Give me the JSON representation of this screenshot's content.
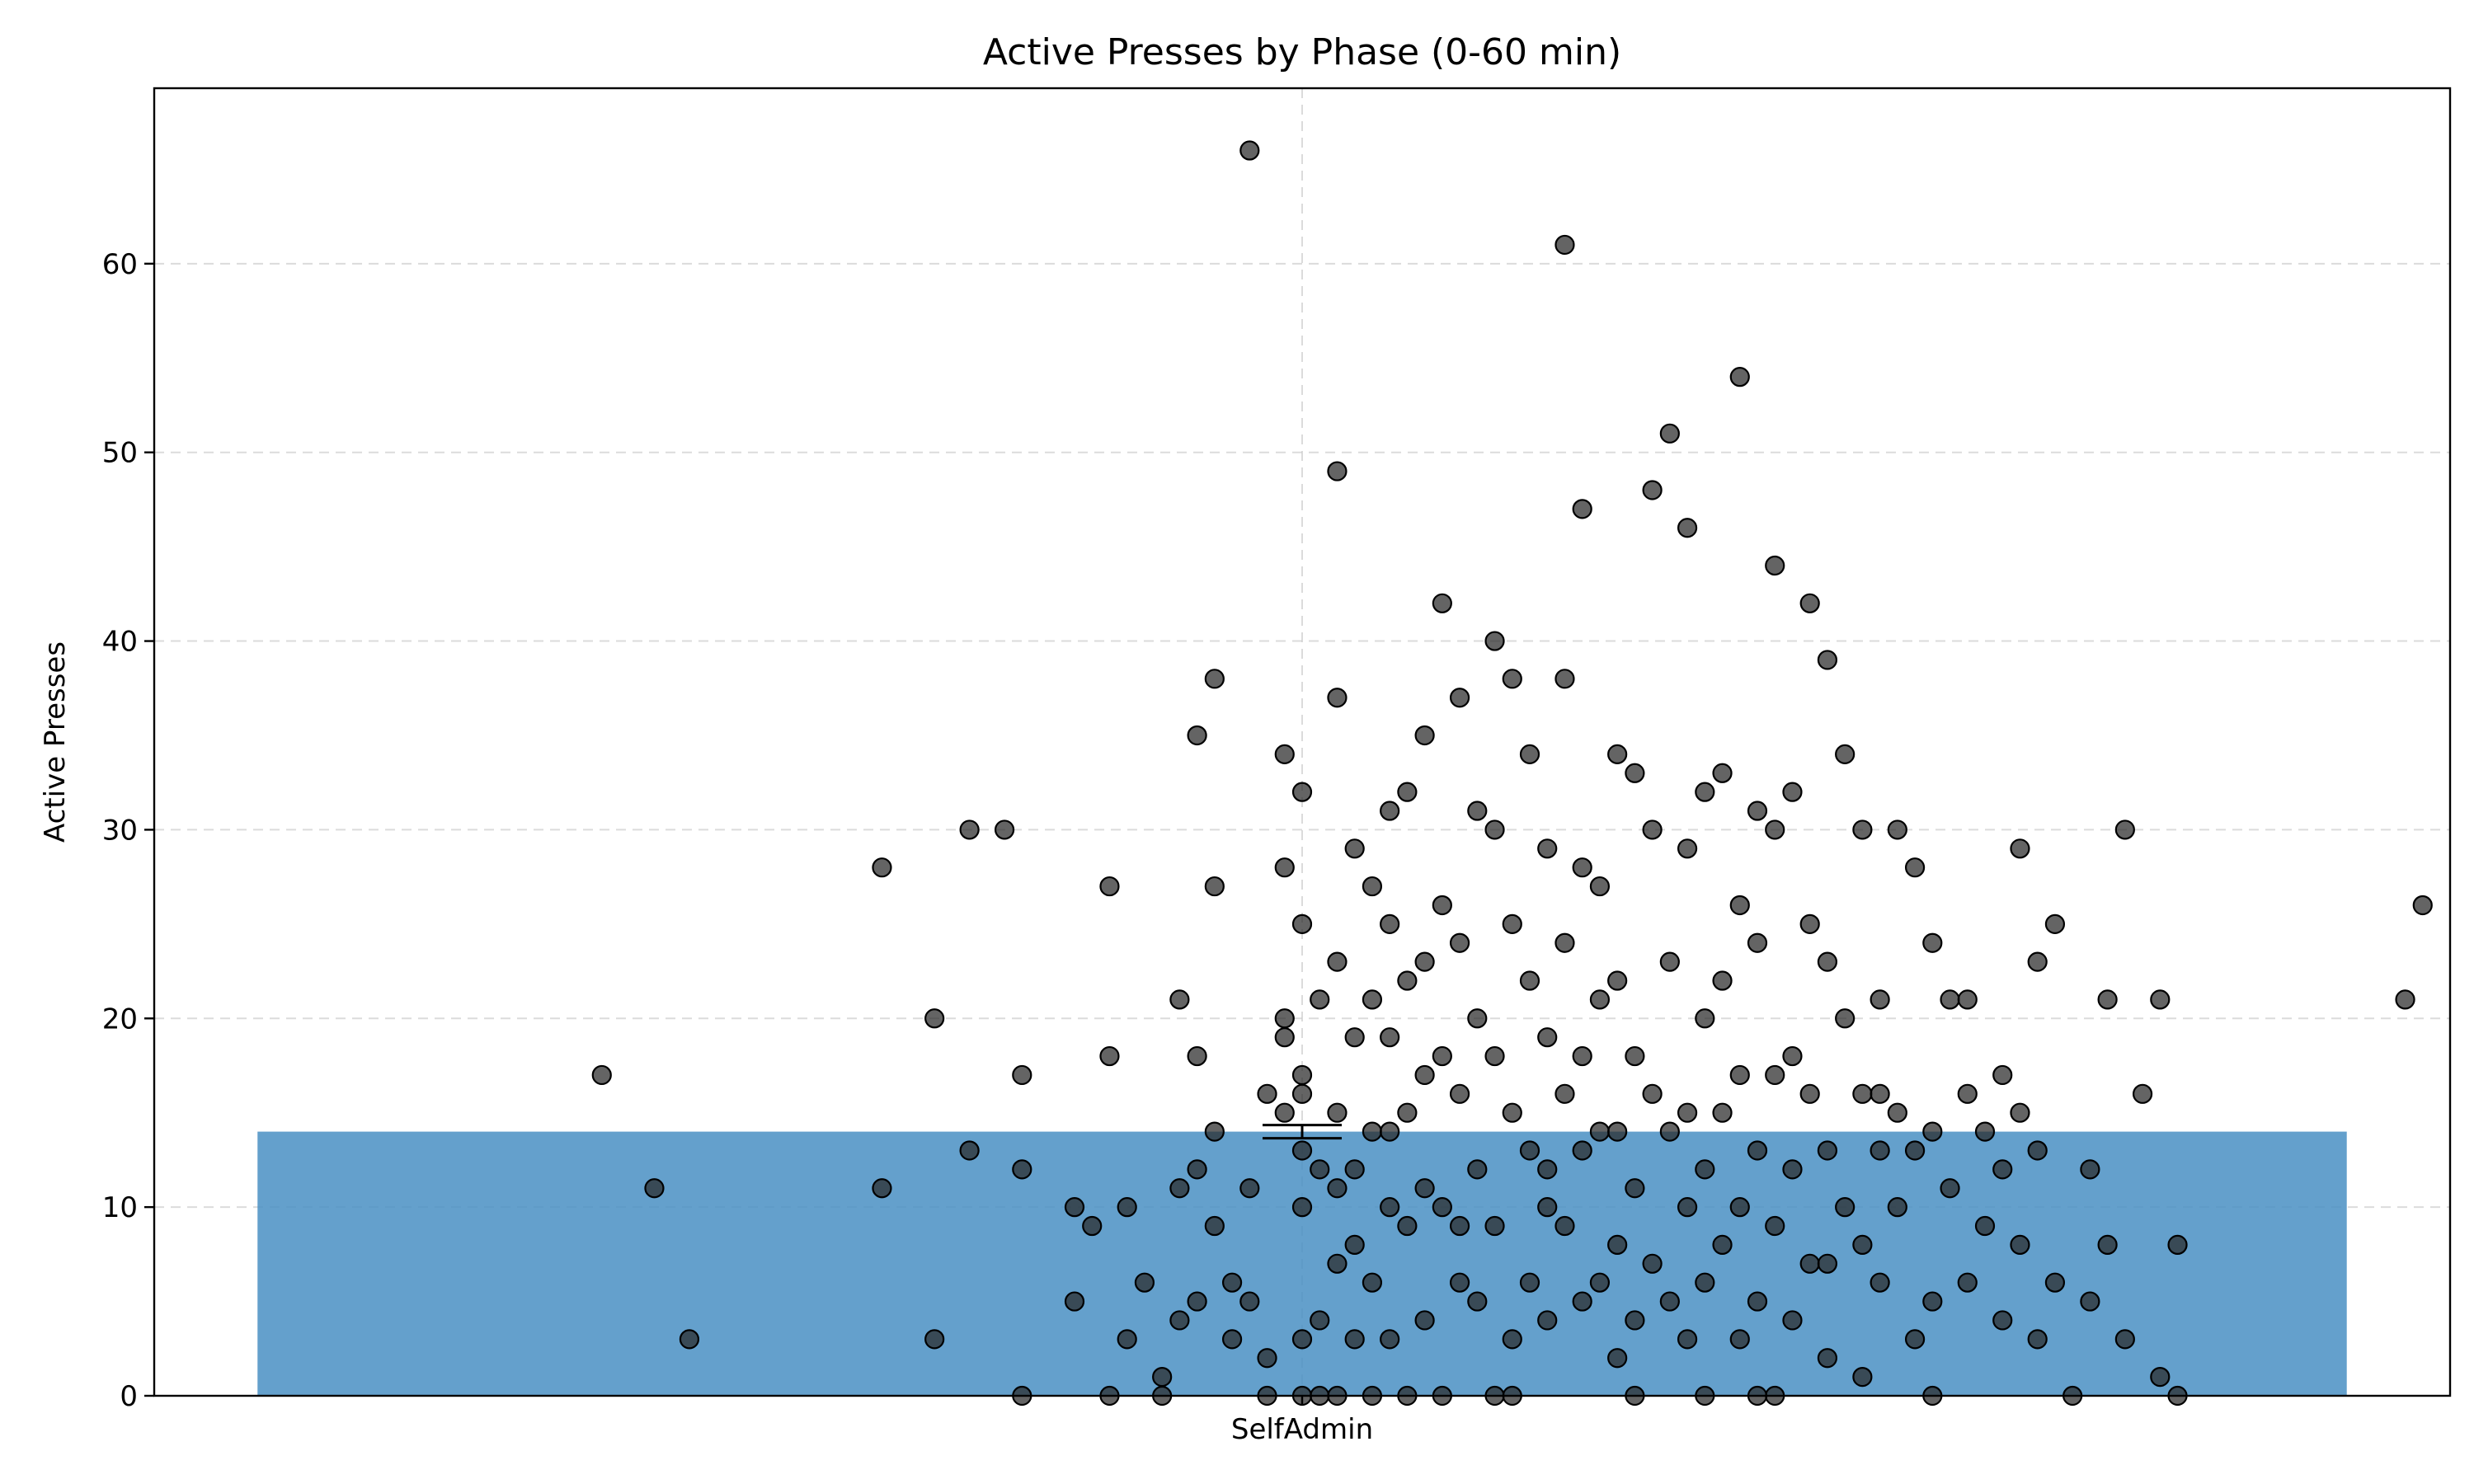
{
  "chart_data": {
    "type": "bar",
    "title": "Active Presses by Phase (0-60 min)",
    "xlabel": "",
    "ylabel": "Active Presses",
    "categories": [
      "SelfAdmin"
    ],
    "values": [
      14
    ],
    "error": [
      0.35
    ],
    "ylim": [
      0,
      69.3
    ],
    "yticks": [
      0,
      10,
      20,
      30,
      40,
      50,
      60
    ],
    "grid": true,
    "bar_color": "#4a90c4",
    "point_color": "#3c3c3c",
    "points": [
      [
        -0.4,
        17
      ],
      [
        -0.37,
        11
      ],
      [
        -0.35,
        3
      ],
      [
        -0.24,
        28
      ],
      [
        -0.24,
        11
      ],
      [
        -0.21,
        20
      ],
      [
        -0.21,
        3
      ],
      [
        -0.19,
        30
      ],
      [
        -0.19,
        13
      ],
      [
        -0.17,
        30
      ],
      [
        -0.16,
        12
      ],
      [
        -0.16,
        17
      ],
      [
        -0.16,
        0
      ],
      [
        -0.13,
        10
      ],
      [
        -0.13,
        5
      ],
      [
        -0.12,
        9
      ],
      [
        -0.11,
        27
      ],
      [
        -0.11,
        18
      ],
      [
        -0.11,
        0
      ],
      [
        -0.1,
        10
      ],
      [
        -0.1,
        3
      ],
      [
        -0.09,
        6
      ],
      [
        -0.08,
        1
      ],
      [
        -0.08,
        0
      ],
      [
        -0.07,
        21
      ],
      [
        -0.07,
        11
      ],
      [
        -0.07,
        4
      ],
      [
        -0.06,
        35
      ],
      [
        -0.06,
        18
      ],
      [
        -0.06,
        12
      ],
      [
        -0.06,
        5
      ],
      [
        -0.05,
        38
      ],
      [
        -0.05,
        27
      ],
      [
        -0.05,
        14
      ],
      [
        -0.05,
        9
      ],
      [
        -0.04,
        6
      ],
      [
        -0.04,
        3
      ],
      [
        -0.03,
        66
      ],
      [
        -0.03,
        11
      ],
      [
        -0.03,
        5
      ],
      [
        -0.02,
        16
      ],
      [
        -0.02,
        2
      ],
      [
        -0.01,
        34
      ],
      [
        -0.01,
        28
      ],
      [
        -0.01,
        20
      ],
      [
        -0.01,
        19
      ],
      [
        -0.01,
        15
      ],
      [
        0,
        32
      ],
      [
        0,
        25
      ],
      [
        0,
        16
      ],
      [
        0,
        13
      ],
      [
        0,
        10
      ],
      [
        0,
        3
      ],
      [
        0,
        0
      ],
      [
        0.01,
        21
      ],
      [
        0.01,
        12
      ],
      [
        0.01,
        4
      ],
      [
        0.01,
        0
      ],
      [
        0.02,
        49
      ],
      [
        0.02,
        37
      ],
      [
        0.02,
        15
      ],
      [
        0.02,
        11
      ],
      [
        0.02,
        7
      ],
      [
        0.02,
        0
      ],
      [
        0.03,
        29
      ],
      [
        0.03,
        19
      ],
      [
        0.03,
        12
      ],
      [
        0.03,
        8
      ],
      [
        0.03,
        3
      ],
      [
        0.04,
        27
      ],
      [
        0.04,
        21
      ],
      [
        0.04,
        14
      ],
      [
        0.04,
        6
      ],
      [
        0.04,
        0
      ],
      [
        0.05,
        31
      ],
      [
        0.05,
        25
      ],
      [
        0.05,
        19
      ],
      [
        0.05,
        10
      ],
      [
        0.05,
        3
      ],
      [
        0.06,
        32
      ],
      [
        0.06,
        22
      ],
      [
        0.06,
        15
      ],
      [
        0.06,
        9
      ],
      [
        0.06,
        0
      ],
      [
        0.07,
        35
      ],
      [
        0.07,
        23
      ],
      [
        0.07,
        17
      ],
      [
        0.07,
        11
      ],
      [
        0.07,
        4
      ],
      [
        0.08,
        42
      ],
      [
        0.08,
        26
      ],
      [
        0.08,
        18
      ],
      [
        0.08,
        10
      ],
      [
        0.08,
        0
      ],
      [
        0.09,
        37
      ],
      [
        0.09,
        24
      ],
      [
        0.09,
        16
      ],
      [
        0.09,
        6
      ],
      [
        0.1,
        31
      ],
      [
        0.1,
        20
      ],
      [
        0.1,
        12
      ],
      [
        0.1,
        5
      ],
      [
        0.11,
        40
      ],
      [
        0.11,
        30
      ],
      [
        0.11,
        18
      ],
      [
        0.11,
        9
      ],
      [
        0.11,
        0
      ],
      [
        0.12,
        38
      ],
      [
        0.12,
        25
      ],
      [
        0.12,
        15
      ],
      [
        0.12,
        3
      ],
      [
        0.13,
        34
      ],
      [
        0.13,
        22
      ],
      [
        0.13,
        13
      ],
      [
        0.13,
        6
      ],
      [
        0.14,
        29
      ],
      [
        0.14,
        19
      ],
      [
        0.14,
        10
      ],
      [
        0.14,
        4
      ],
      [
        0.15,
        61
      ],
      [
        0.15,
        38
      ],
      [
        0.15,
        24
      ],
      [
        0.15,
        16
      ],
      [
        0.15,
        9
      ],
      [
        0.16,
        47
      ],
      [
        0.16,
        28
      ],
      [
        0.16,
        18
      ],
      [
        0.16,
        13
      ],
      [
        0.16,
        5
      ],
      [
        0.17,
        27
      ],
      [
        0.17,
        14
      ],
      [
        0.17,
        6
      ],
      [
        0.18,
        34
      ],
      [
        0.18,
        22
      ],
      [
        0.18,
        14
      ],
      [
        0.18,
        8
      ],
      [
        0.18,
        2
      ],
      [
        0.19,
        33
      ],
      [
        0.19,
        18
      ],
      [
        0.19,
        11
      ],
      [
        0.19,
        4
      ],
      [
        0.2,
        48
      ],
      [
        0.2,
        30
      ],
      [
        0.2,
        16
      ],
      [
        0.2,
        7
      ],
      [
        0.21,
        51
      ],
      [
        0.21,
        23
      ],
      [
        0.21,
        14
      ],
      [
        0.21,
        5
      ],
      [
        0.22,
        46
      ],
      [
        0.22,
        29
      ],
      [
        0.22,
        15
      ],
      [
        0.22,
        10
      ],
      [
        0.22,
        3
      ],
      [
        0.23,
        32
      ],
      [
        0.23,
        20
      ],
      [
        0.23,
        12
      ],
      [
        0.23,
        6
      ],
      [
        0.24,
        33
      ],
      [
        0.24,
        22
      ],
      [
        0.24,
        8
      ],
      [
        0.25,
        54
      ],
      [
        0.25,
        26
      ],
      [
        0.25,
        17
      ],
      [
        0.25,
        10
      ],
      [
        0.25,
        3
      ],
      [
        0.26,
        31
      ],
      [
        0.26,
        24
      ],
      [
        0.26,
        13
      ],
      [
        0.26,
        5
      ],
      [
        0.27,
        44
      ],
      [
        0.27,
        30
      ],
      [
        0.27,
        17
      ],
      [
        0.27,
        9
      ],
      [
        0.27,
        0
      ],
      [
        0.28,
        32
      ],
      [
        0.28,
        18
      ],
      [
        0.28,
        12
      ],
      [
        0.28,
        4
      ],
      [
        0.29,
        42
      ],
      [
        0.29,
        25
      ],
      [
        0.29,
        16
      ],
      [
        0.29,
        7
      ],
      [
        0.3,
        39
      ],
      [
        0.3,
        23
      ],
      [
        0.3,
        13
      ],
      [
        0.3,
        2
      ],
      [
        0.31,
        34
      ],
      [
        0.31,
        20
      ],
      [
        0.31,
        10
      ],
      [
        0.32,
        30
      ],
      [
        0.32,
        16
      ],
      [
        0.32,
        8
      ],
      [
        0.33,
        21
      ],
      [
        0.33,
        13
      ],
      [
        0.33,
        6
      ],
      [
        0.34,
        30
      ],
      [
        0.34,
        15
      ],
      [
        0.34,
        10
      ],
      [
        0.35,
        28
      ],
      [
        0.35,
        13
      ],
      [
        0.35,
        3
      ],
      [
        0.36,
        24
      ],
      [
        0.36,
        14
      ],
      [
        0.36,
        5
      ],
      [
        0.37,
        21
      ],
      [
        0.37,
        11
      ],
      [
        0.38,
        16
      ],
      [
        0.38,
        6
      ],
      [
        0.39,
        14
      ],
      [
        0.39,
        9
      ],
      [
        0.4,
        17
      ],
      [
        0.4,
        4
      ],
      [
        0.41,
        29
      ],
      [
        0.41,
        15
      ],
      [
        0.41,
        8
      ],
      [
        0.42,
        23
      ],
      [
        0.42,
        13
      ],
      [
        0.42,
        3
      ],
      [
        0.43,
        25
      ],
      [
        0.45,
        12
      ],
      [
        0.45,
        5
      ],
      [
        0.46,
        21
      ],
      [
        0.46,
        8
      ],
      [
        0.47,
        30
      ],
      [
        0.48,
        16
      ],
      [
        0.49,
        21
      ],
      [
        0.5,
        8
      ],
      [
        0.5,
        0
      ],
      [
        0.63,
        21
      ],
      [
        0.64,
        26
      ],
      [
        -0.02,
        0
      ],
      [
        0.0,
        17
      ],
      [
        0.02,
        23
      ],
      [
        0.05,
        14
      ],
      [
        0.09,
        9
      ],
      [
        0.12,
        0
      ],
      [
        0.14,
        12
      ],
      [
        0.17,
        21
      ],
      [
        0.19,
        0
      ],
      [
        0.23,
        0
      ],
      [
        0.24,
        15
      ],
      [
        0.26,
        0
      ],
      [
        0.3,
        7
      ],
      [
        0.32,
        1
      ],
      [
        0.33,
        16
      ],
      [
        0.36,
        0
      ],
      [
        0.38,
        21
      ],
      [
        0.4,
        12
      ],
      [
        0.43,
        6
      ],
      [
        0.44,
        0
      ],
      [
        0.47,
        3
      ],
      [
        0.49,
        1
      ]
    ]
  }
}
